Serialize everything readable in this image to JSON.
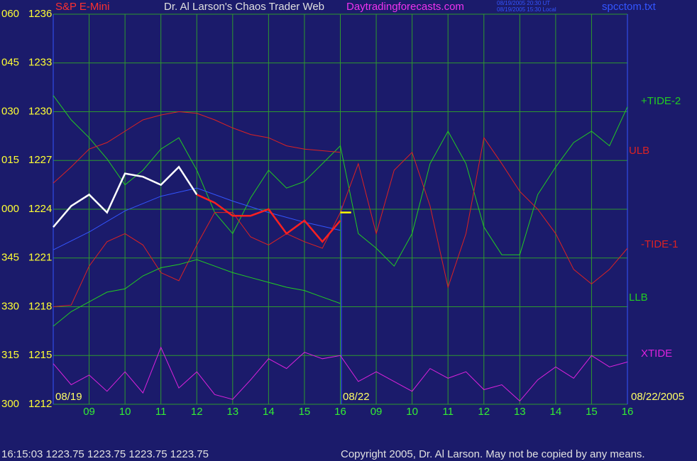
{
  "chart_data": {
    "type": "line",
    "instrument": "S&P E-Mini",
    "title": "Dr. Al Larson's Chaos Trader Web",
    "site": "Daytradingforecasts.com",
    "timestamp_ut": "08/19/2005 20:30 UT",
    "timestamp_local": "08/19/2005 15:30 Local",
    "file": "spcctom.txt",
    "status": "16:15:03  1223.75 1223.75 1223.75 1223.75",
    "copyright": "Copyright 2005, Dr. Al Larson. May not be copied by any means.",
    "date_labels": [
      "08/19",
      "08/22",
      "08/22/2005"
    ],
    "x": [
      0,
      0.5,
      1,
      1.5,
      2,
      2.5,
      3,
      3.5,
      4,
      4.5,
      5,
      5.5,
      6,
      6.5,
      7,
      7.5,
      8,
      8.5,
      9,
      9.5,
      10,
      10.5,
      11,
      11.5,
      12,
      12.5,
      13,
      13.5,
      14,
      14.5,
      15,
      15.5,
      16
    ],
    "xlim": [
      0,
      16
    ],
    "xticks": [
      {
        "value": 1,
        "label": "09"
      },
      {
        "value": 2,
        "label": "10"
      },
      {
        "value": 3,
        "label": "11"
      },
      {
        "value": 4,
        "label": "12"
      },
      {
        "value": 5,
        "label": "13"
      },
      {
        "value": 6,
        "label": "14"
      },
      {
        "value": 7,
        "label": "15"
      },
      {
        "value": 8,
        "label": "16"
      },
      {
        "value": 9,
        "label": "09"
      },
      {
        "value": 10,
        "label": "10"
      },
      {
        "value": 11,
        "label": "11"
      },
      {
        "value": 12,
        "label": "12"
      },
      {
        "value": 13,
        "label": "13"
      },
      {
        "value": 14,
        "label": "14"
      },
      {
        "value": 15,
        "label": "15"
      },
      {
        "value": 16,
        "label": "16"
      }
    ],
    "ylim": [
      1212,
      1236
    ],
    "yticks": [
      1236,
      1233,
      1230,
      1227,
      1224,
      1221,
      1218,
      1215,
      1212
    ],
    "angle_labels": [
      "060",
      "045",
      "030",
      "015",
      "000",
      "345",
      "330",
      "315",
      "300"
    ],
    "grid": true,
    "series": [
      {
        "name": "+TIDE-2",
        "color": "#22cc22",
        "values": [
          1231,
          1229.5,
          1228.4,
          1227.1,
          1225.5,
          1226.4,
          1227.7,
          1228.4,
          1226.4,
          1223.8,
          1222.5,
          1224.7,
          1226.4,
          1225.3,
          1225.7,
          1226.8,
          1227.9,
          1222.5,
          1221.6,
          1220.5,
          1222.5,
          1226.8,
          1228.8,
          1226.8,
          1222.9,
          1221.2,
          1221.2,
          1224.9,
          1226.6,
          1228.1,
          1228.8,
          1227.9,
          1230.3
        ]
      },
      {
        "name": "ULB",
        "color": "#dd2222",
        "values": [
          1225.6,
          1226.6,
          1227.7,
          1228.1,
          1228.8,
          1229.5,
          1229.8,
          1230,
          1229.9,
          1229.5,
          1229,
          1228.6,
          1228.4,
          1227.9,
          1227.7,
          1227.6,
          1227.5,
          null,
          null,
          null,
          null,
          null,
          null,
          null,
          null,
          null,
          null,
          null,
          null,
          null,
          null,
          null,
          null
        ]
      },
      {
        "name": "-TIDE-1",
        "color": "#dd2222",
        "values": [
          1218,
          1218.1,
          1220.5,
          1222,
          1222.5,
          1221.8,
          1220.1,
          1219.6,
          1221.8,
          1223.8,
          1223.8,
          1222.3,
          1221.8,
          1222.5,
          1222,
          1221.6,
          1223.8,
          1226.8,
          1222.5,
          1226.4,
          1227.5,
          1224.2,
          1219.2,
          1222.5,
          1228.4,
          1226.8,
          1225.1,
          1224,
          1222.5,
          1220.3,
          1219.4,
          1220.3,
          1221.6
        ]
      },
      {
        "name": "LLB",
        "color": "#22cc22",
        "values": [
          1216.8,
          1217.7,
          1218.3,
          1218.9,
          1219.1,
          1219.9,
          1220.4,
          1220.6,
          1220.9,
          1220.5,
          1220.1,
          1219.8,
          1219.5,
          1219.2,
          1219,
          1218.6,
          1218.2,
          null,
          null,
          null,
          null,
          null,
          null,
          null,
          null,
          null,
          null,
          null,
          null,
          null,
          null,
          null,
          null
        ]
      },
      {
        "name": "XTIDE",
        "color": "#dd22dd",
        "values": [
          1214.5,
          1213.2,
          1213.8,
          1212.8,
          1214,
          1212.7,
          1215.5,
          1213,
          1214,
          1212.6,
          1212.3,
          1213.5,
          1214.8,
          1214.2,
          1215.2,
          1214.8,
          1215,
          1213.4,
          1214,
          1213.4,
          1212.8,
          1214.2,
          1213.6,
          1214,
          1212.9,
          1213.2,
          1212.2,
          1213.5,
          1214.3,
          1213.6,
          1215,
          1214.3,
          1214.6
        ]
      },
      {
        "color": "#3355ff",
        "x": [
          0,
          1,
          2,
          3,
          4,
          5,
          6,
          7,
          8
        ],
        "values": [
          1221.5,
          1222.6,
          1223.9,
          1224.8,
          1225.3,
          1224.5,
          1223.8,
          1223.2,
          1222.7
        ]
      },
      {
        "color": "#ffffff",
        "x": [
          0,
          0.5,
          1,
          1.5,
          2,
          2.5,
          3,
          3.5,
          4
        ],
        "values": [
          1222.9,
          1224.2,
          1224.9,
          1223.8,
          1226.2,
          1226,
          1225.5,
          1226.6,
          1224.9
        ]
      },
      {
        "color": "#ff2020",
        "x": [
          4,
          4.5,
          5,
          5.5,
          6,
          6.5,
          7,
          7.5,
          8
        ],
        "values": [
          1224.9,
          1224.4,
          1223.6,
          1223.6,
          1224,
          1222.5,
          1223.3,
          1222,
          1223.3
        ]
      },
      {
        "color": "#ffff00",
        "x": [
          8,
          8.3
        ],
        "values": [
          1223.8,
          1223.8
        ]
      }
    ]
  }
}
